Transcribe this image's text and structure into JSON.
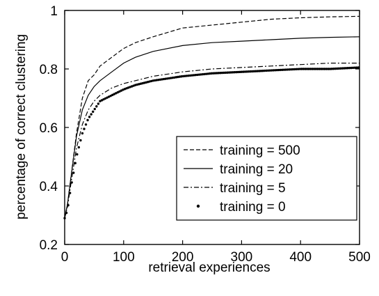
{
  "chart_data": {
    "type": "line",
    "title": "",
    "xlabel": "retrieval experiences",
    "ylabel": "percentage of correct clustering",
    "xlim": [
      0,
      500
    ],
    "ylim": [
      0.2,
      1.0
    ],
    "x_ticks": [
      "0",
      "100",
      "200",
      "300",
      "400",
      "500"
    ],
    "y_ticks": [
      "0.2",
      "0.4",
      "0.6",
      "0.8",
      "1"
    ],
    "grid": false,
    "legend_position": "lower-right",
    "series": [
      {
        "name": "training = 500",
        "style": "dashed",
        "x": [
          0,
          5,
          10,
          20,
          30,
          40,
          50,
          60,
          80,
          100,
          120,
          150,
          200,
          250,
          300,
          350,
          400,
          450,
          500
        ],
        "y": [
          0.29,
          0.34,
          0.42,
          0.58,
          0.7,
          0.76,
          0.78,
          0.81,
          0.84,
          0.87,
          0.89,
          0.91,
          0.94,
          0.95,
          0.96,
          0.97,
          0.975,
          0.978,
          0.98
        ]
      },
      {
        "name": "training = 20",
        "style": "solid",
        "x": [
          0,
          5,
          10,
          20,
          30,
          40,
          50,
          60,
          80,
          100,
          120,
          150,
          200,
          250,
          300,
          350,
          400,
          450,
          500
        ],
        "y": [
          0.29,
          0.34,
          0.42,
          0.57,
          0.66,
          0.71,
          0.74,
          0.76,
          0.79,
          0.82,
          0.84,
          0.86,
          0.88,
          0.89,
          0.895,
          0.9,
          0.905,
          0.908,
          0.91
        ]
      },
      {
        "name": "training = 5",
        "style": "dashdot",
        "x": [
          0,
          5,
          10,
          20,
          30,
          40,
          50,
          60,
          80,
          100,
          120,
          150,
          200,
          250,
          300,
          350,
          400,
          450,
          500
        ],
        "y": [
          0.29,
          0.33,
          0.4,
          0.53,
          0.61,
          0.66,
          0.69,
          0.71,
          0.735,
          0.75,
          0.76,
          0.775,
          0.79,
          0.8,
          0.805,
          0.81,
          0.815,
          0.82,
          0.82
        ]
      },
      {
        "name": "training = 0",
        "style": "dots",
        "x": [
          0,
          5,
          10,
          20,
          30,
          40,
          50,
          60,
          80,
          100,
          120,
          150,
          200,
          250,
          300,
          350,
          400,
          450,
          500
        ],
        "y": [
          0.29,
          0.32,
          0.39,
          0.5,
          0.58,
          0.63,
          0.66,
          0.69,
          0.71,
          0.73,
          0.745,
          0.76,
          0.775,
          0.785,
          0.79,
          0.795,
          0.8,
          0.8,
          0.805
        ]
      }
    ]
  }
}
